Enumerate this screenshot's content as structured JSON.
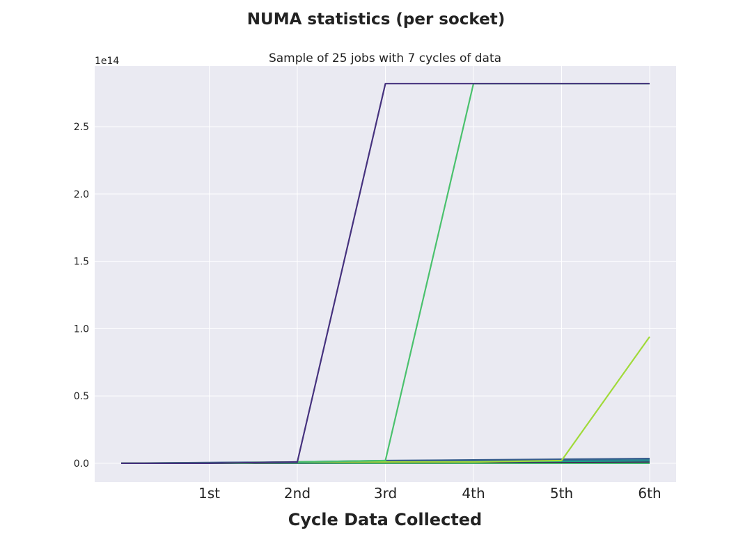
{
  "chart_data": {
    "type": "line",
    "title": "NUMA statistics (per socket)",
    "subtitle": "Sample of 25 jobs with 7 cycles of data",
    "xlabel": "Cycle Data Collected",
    "ylabel": "",
    "y_offset_label": "1e14",
    "categories": [
      "",
      "1st",
      "2nd",
      "3rd",
      "4th",
      "5th",
      "6th"
    ],
    "x": [
      0,
      1,
      2,
      3,
      4,
      5,
      6
    ],
    "xlim": [
      -0.3,
      6.3
    ],
    "ylim": [
      -0.14,
      2.95
    ],
    "yticks": [
      0.0,
      0.5,
      1.0,
      1.5,
      2.0,
      2.5
    ],
    "ytick_labels": [
      "0.0",
      "0.5",
      "1.0",
      "1.5",
      "2.0",
      "2.5"
    ],
    "y_scale_note": "values in units of 1e14",
    "grid": true,
    "background": "#eaeaf2",
    "grid_color": "#ffffff",
    "series": [
      {
        "color": "#46327e",
        "values": [
          0.0,
          0.0,
          0.01,
          2.82,
          2.82,
          2.82,
          2.82
        ]
      },
      {
        "color": "#4ac16d",
        "values": [
          0.0,
          0.0,
          0.01,
          0.02,
          2.82,
          2.82,
          2.82
        ]
      },
      {
        "color": "#a0da39",
        "values": [
          0.0,
          0.0,
          0.01,
          0.01,
          0.01,
          0.02,
          0.94
        ]
      },
      {
        "color": "#365c8d",
        "values": [
          0.0,
          0.005,
          0.01,
          0.02,
          0.025,
          0.03,
          0.035
        ]
      },
      {
        "color": "#277f8e",
        "values": [
          0.0,
          0.004,
          0.008,
          0.012,
          0.016,
          0.02,
          0.025
        ]
      },
      {
        "color": "#1fa187",
        "values": [
          0.0,
          0.003,
          0.006,
          0.009,
          0.012,
          0.015,
          0.018
        ]
      },
      {
        "color": "#440154",
        "values": [
          0.0,
          0.002,
          0.004,
          0.006,
          0.008,
          0.01,
          0.012
        ]
      },
      {
        "color": "#3dbc74",
        "values": [
          0.0,
          0.001,
          0.002,
          0.003,
          0.004,
          0.005,
          0.006
        ]
      },
      {
        "color": "#5ec962",
        "values": [
          0.0,
          0.0,
          0.001,
          0.001,
          0.002,
          0.002,
          0.003
        ]
      },
      {
        "color": "#2fb47c",
        "values": [
          0.0,
          0.0,
          0.0,
          0.0,
          0.0,
          0.0,
          0.0
        ]
      }
    ]
  }
}
